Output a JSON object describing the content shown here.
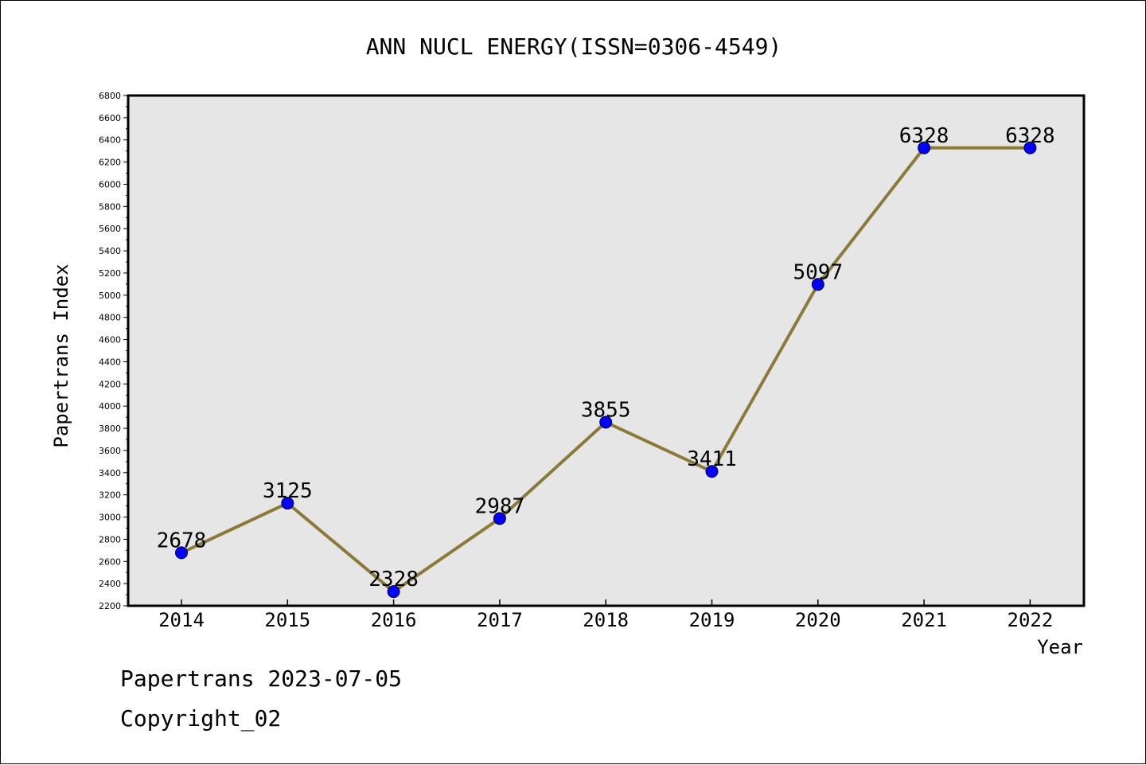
{
  "chart_data": {
    "type": "line",
    "title": "ANN NUCL ENERGY(ISSN=0306-4549)",
    "xlabel": "Year",
    "ylabel": "Papertrans Index",
    "categories": [
      "2014",
      "2015",
      "2016",
      "2017",
      "2018",
      "2019",
      "2020",
      "2021",
      "2022"
    ],
    "series": [
      {
        "values": [
          2678,
          3125,
          2328,
          2987,
          3855,
          3411,
          5097,
          6328,
          6328
        ]
      }
    ],
    "data_labels": [
      "2678",
      "3125",
      "2328",
      "2987",
      "3855",
      "3411",
      "5097",
      "6328",
      "6328"
    ],
    "ylim": [
      2200,
      6800
    ],
    "ytick_step": 200,
    "grid": false,
    "colors": {
      "line": "#8b7a3a",
      "marker": "#0000ff",
      "plot_bg": "#e6e6e6"
    }
  },
  "footer": {
    "line1": "Papertrans 2023-07-05",
    "line2": "Copyright_02"
  }
}
